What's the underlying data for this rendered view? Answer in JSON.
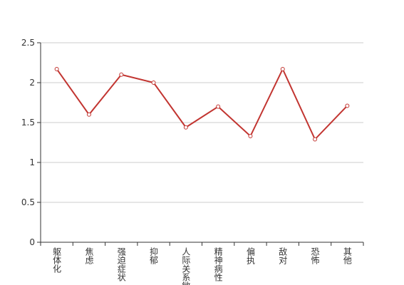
{
  "chart_data": {
    "type": "line",
    "categories": [
      "躯体化",
      "焦虑",
      "强迫症状",
      "抑郁",
      "人际关系敏感",
      "精神病性",
      "偏执",
      "敌对",
      "恐怖",
      "其他"
    ],
    "series": [
      {
        "color": "#c23531",
        "values": [
          2.17,
          1.6,
          2.1,
          2.0,
          1.44,
          1.7,
          1.33,
          2.17,
          1.29,
          1.71
        ]
      }
    ],
    "ylim": [
      0,
      2.5
    ],
    "yticks": [
      0,
      0.5,
      1,
      1.5,
      2,
      2.5
    ],
    "grid": true
  }
}
